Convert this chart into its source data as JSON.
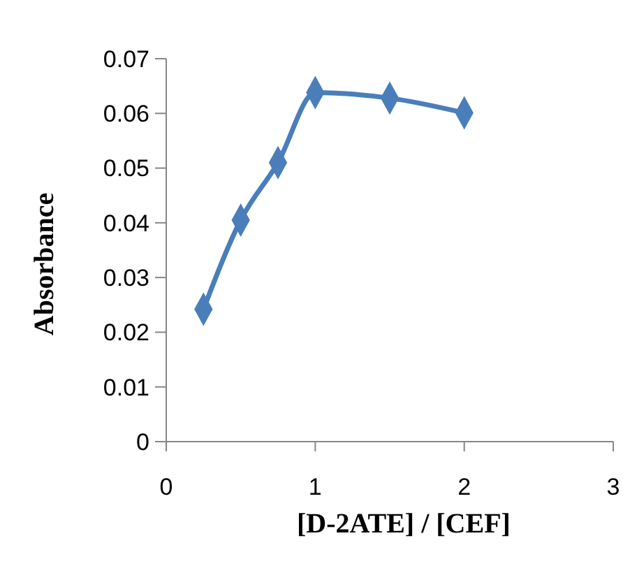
{
  "chart_data": {
    "type": "line",
    "xlabel": "[D-2ATE] / [CEF]",
    "ylabel": "Absorbance",
    "x": [
      0.25,
      0.5,
      0.75,
      1,
      1.5,
      2
    ],
    "series": [
      {
        "color": "#4a7ebb",
        "values": [
          0.0242,
          0.0405,
          0.051,
          0.0638,
          0.0628,
          0.0601
        ]
      }
    ],
    "xlim": [
      0,
      3
    ],
    "xticks": [
      0,
      1,
      2,
      3
    ],
    "ylim": [
      0,
      0.07
    ],
    "yticks": [
      0,
      0.01,
      0.02,
      0.03,
      0.04,
      0.05,
      0.06,
      0.07
    ],
    "marker": "diamond",
    "grid": false
  }
}
